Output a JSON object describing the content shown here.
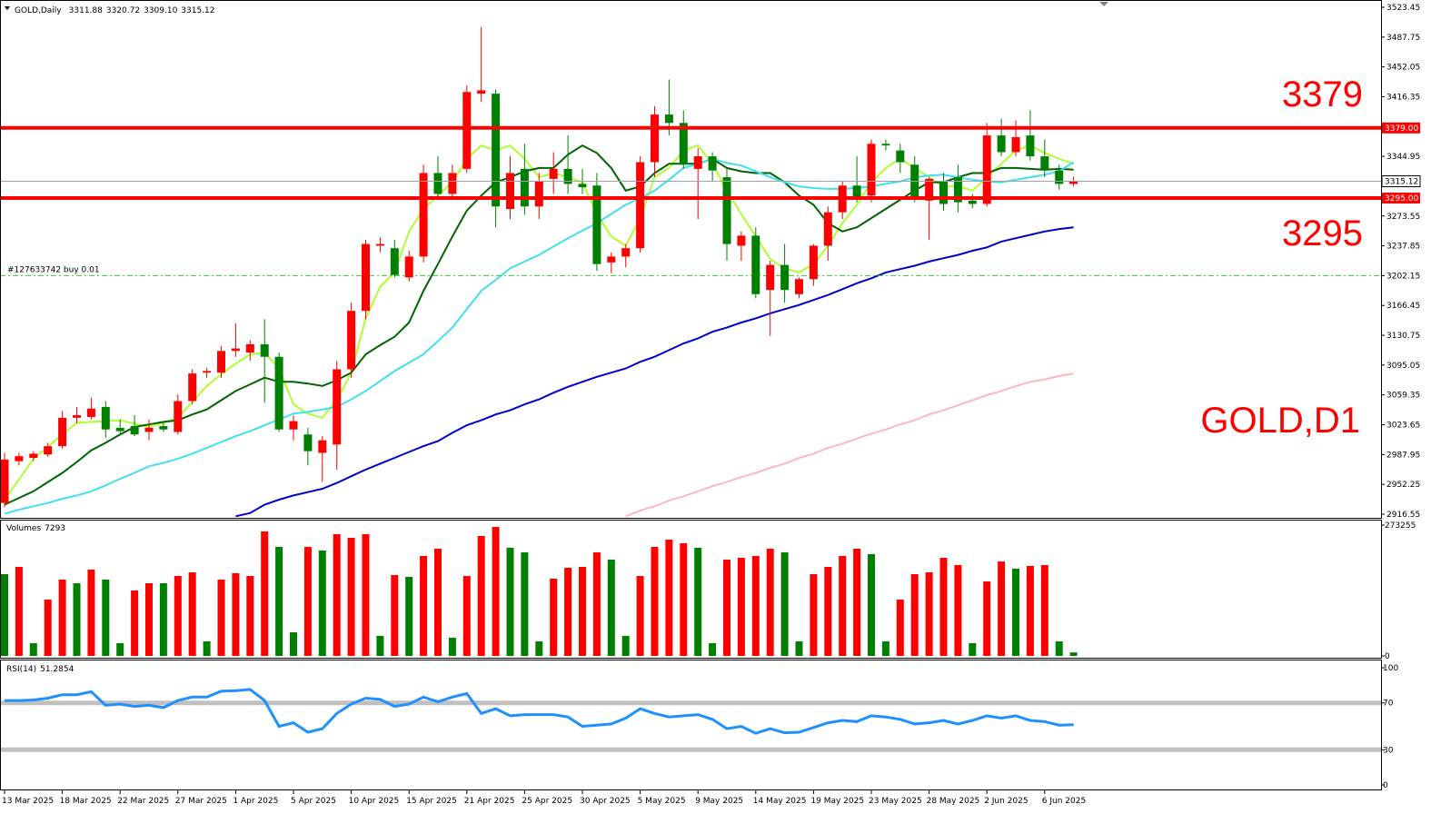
{
  "chart_data": [
    {
      "type": "candlestick",
      "title": "GOLD,Daily",
      "ohlc_labels": [
        "3311.88",
        "3320.72",
        "3309.10",
        "3315.12"
      ],
      "categories": [
        "13 Mar 2025",
        null,
        null,
        null,
        "18 Mar 2025",
        null,
        null,
        null,
        "22 Mar 2025",
        null,
        null,
        null,
        "27 Mar 2025",
        null,
        null,
        null,
        "1 Apr 2025",
        null,
        null,
        null,
        "5 Apr 2025",
        null,
        null,
        null,
        "10 Apr 2025",
        null,
        null,
        null,
        "15 Apr 2025",
        null,
        null,
        null,
        "21 Apr 2025",
        null,
        null,
        null,
        "25 Apr 2025",
        null,
        null,
        null,
        "30 Apr 2025",
        null,
        null,
        null,
        "5 May 2025",
        null,
        null,
        null,
        "9 May 2025",
        null,
        null,
        null,
        "14 May 2025",
        null,
        null,
        null,
        "19 May 2025",
        null,
        null,
        null,
        "23 May 2025",
        null,
        null,
        null,
        "28 May 2025",
        null,
        null,
        null,
        "2 Jun 2025",
        null,
        null,
        null,
        "6 Jun 2025",
        null,
        null
      ],
      "candles": [
        [
          2930,
          2990,
          2925,
          2982
        ],
        [
          2980,
          2990,
          2975,
          2986
        ],
        [
          2984,
          2992,
          2980,
          2989
        ],
        [
          2988,
          3002,
          2985,
          2998
        ],
        [
          2998,
          3040,
          2995,
          3032
        ],
        [
          3032,
          3045,
          3025,
          3035
        ],
        [
          3033,
          3056,
          3030,
          3043
        ],
        [
          3045,
          3052,
          3008,
          3018
        ],
        [
          3020,
          3030,
          3012,
          3016
        ],
        [
          3022,
          3035,
          3010,
          3012
        ],
        [
          3015,
          3030,
          3005,
          3020
        ],
        [
          3022,
          3028,
          3015,
          3018
        ],
        [
          3015,
          3060,
          3012,
          3052
        ],
        [
          3052,
          3090,
          3048,
          3085
        ],
        [
          3086,
          3092,
          3080,
          3088
        ],
        [
          3086,
          3118,
          3080,
          3112
        ],
        [
          3112,
          3145,
          3105,
          3115
        ],
        [
          3110,
          3125,
          3100,
          3120
        ],
        [
          3120,
          3150,
          3050,
          3105
        ],
        [
          3105,
          3110,
          3015,
          3018
        ],
        [
          3018,
          3035,
          3005,
          3028
        ],
        [
          3012,
          3020,
          2975,
          2992
        ],
        [
          2990,
          3010,
          2955,
          3005
        ],
        [
          3000,
          3100,
          2970,
          3090
        ],
        [
          3090,
          3170,
          3080,
          3160
        ],
        [
          3160,
          3245,
          3150,
          3240
        ],
        [
          3238,
          3248,
          3230,
          3240
        ],
        [
          3235,
          3245,
          3200,
          3203
        ],
        [
          3200,
          3232,
          3195,
          3225
        ],
        [
          3225,
          3335,
          3218,
          3325
        ],
        [
          3325,
          3345,
          3295,
          3300
        ],
        [
          3300,
          3335,
          3295,
          3325
        ],
        [
          3330,
          3430,
          3325,
          3422
        ],
        [
          3420,
          3500,
          3410,
          3424
        ],
        [
          3420,
          3425,
          3260,
          3285
        ],
        [
          3282,
          3345,
          3270,
          3325
        ],
        [
          3330,
          3360,
          3275,
          3285
        ],
        [
          3285,
          3325,
          3270,
          3315
        ],
        [
          3318,
          3350,
          3300,
          3330
        ],
        [
          3330,
          3370,
          3300,
          3312
        ],
        [
          3312,
          3330,
          3300,
          3308
        ],
        [
          3310,
          3325,
          3208,
          3216
        ],
        [
          3218,
          3230,
          3205,
          3225
        ],
        [
          3225,
          3240,
          3212,
          3235
        ],
        [
          3235,
          3345,
          3230,
          3338
        ],
        [
          3338,
          3405,
          3320,
          3395
        ],
        [
          3395,
          3437,
          3370,
          3385
        ],
        [
          3385,
          3400,
          3330,
          3335
        ],
        [
          3330,
          3355,
          3270,
          3345
        ],
        [
          3345,
          3350,
          3315,
          3328
        ],
        [
          3320,
          3330,
          3220,
          3240
        ],
        [
          3238,
          3255,
          3220,
          3250
        ],
        [
          3250,
          3260,
          3175,
          3180
        ],
        [
          3185,
          3220,
          3130,
          3215
        ],
        [
          3215,
          3240,
          3170,
          3185
        ],
        [
          3180,
          3200,
          3175,
          3198
        ],
        [
          3198,
          3240,
          3190,
          3238
        ],
        [
          3238,
          3285,
          3220,
          3278
        ],
        [
          3278,
          3315,
          3270,
          3310
        ],
        [
          3310,
          3345,
          3290,
          3295
        ],
        [
          3298,
          3365,
          3290,
          3360
        ],
        [
          3360,
          3365,
          3352,
          3358
        ],
        [
          3352,
          3360,
          3325,
          3338
        ],
        [
          3335,
          3345,
          3290,
          3295
        ],
        [
          3292,
          3320,
          3245,
          3318
        ],
        [
          3315,
          3325,
          3280,
          3288
        ],
        [
          3320,
          3335,
          3278,
          3290
        ],
        [
          3292,
          3300,
          3283,
          3288
        ],
        [
          3288,
          3385,
          3285,
          3370
        ],
        [
          3370,
          3390,
          3345,
          3350
        ],
        [
          3350,
          3388,
          3345,
          3368
        ],
        [
          3370,
          3400,
          3340,
          3345
        ],
        [
          3345,
          3365,
          3320,
          3328
        ],
        [
          3328,
          3335,
          3305,
          3312
        ],
        [
          3311.88,
          3320.72,
          3309.1,
          3315.12
        ]
      ],
      "up_color": "#ff0000",
      "down_color": "#008000",
      "overlays": [
        {
          "color": "#adff2f",
          "values": [
            2934,
            2958,
            2983,
            2997,
            3012,
            3026,
            3027,
            3028,
            3029,
            3025,
            3021,
            3026,
            3032,
            3051,
            3070,
            3084,
            3097,
            3108,
            3110,
            3091,
            3048,
            3037,
            3032,
            3053,
            3086,
            3151,
            3189,
            3206,
            3255,
            3282,
            3298,
            3314,
            3342,
            3358,
            3352,
            3358,
            3342,
            3320,
            3325,
            3320,
            3314,
            3276,
            3249,
            3238,
            3271,
            3320,
            3331,
            3352,
            3358,
            3336,
            3304,
            3276,
            3249,
            3222,
            3211,
            3206,
            3216,
            3238,
            3265,
            3287,
            3314,
            3331,
            3342,
            3331,
            3320,
            3309,
            3309,
            3304,
            3320,
            3336,
            3352,
            3358,
            3349,
            3342,
            3336
          ]
        },
        {
          "color": "#006400",
          "values": [
            2928,
            2936,
            2944,
            2955,
            2966,
            2979,
            2993,
            3002,
            3012,
            3021,
            3024,
            3027,
            3029,
            3036,
            3042,
            3053,
            3064,
            3072,
            3080,
            3075,
            3075,
            3073,
            3070,
            3077,
            3086,
            3108,
            3119,
            3129,
            3146,
            3184,
            3216,
            3249,
            3280,
            3298,
            3314,
            3320,
            3327,
            3331,
            3331,
            3347,
            3358,
            3349,
            3331,
            3304,
            3309,
            3325,
            3336,
            3336,
            3336,
            3342,
            3331,
            3327,
            3325,
            3325,
            3314,
            3298,
            3287,
            3265,
            3255,
            3260,
            3271,
            3282,
            3293,
            3304,
            3314,
            3314,
            3320,
            3325,
            3325,
            3331,
            3331,
            3330,
            3329,
            3330,
            3329
          ]
        },
        {
          "color": "#40e0f0",
          "values": [
            2917,
            2922,
            2926,
            2930,
            2935,
            2939,
            2944,
            2951,
            2959,
            2966,
            2974,
            2978,
            2983,
            2989,
            2996,
            3003,
            3010,
            3016,
            3023,
            3030,
            3037,
            3039,
            3042,
            3045,
            3054,
            3064,
            3076,
            3088,
            3098,
            3108,
            3124,
            3140,
            3162,
            3184,
            3197,
            3211,
            3219,
            3227,
            3237,
            3247,
            3256,
            3265,
            3276,
            3287,
            3295,
            3304,
            3317,
            3331,
            3336,
            3342,
            3337,
            3334,
            3327,
            3320,
            3314,
            3309,
            3307,
            3306,
            3306,
            3307,
            3309,
            3312,
            3315,
            3320,
            3322,
            3323,
            3320,
            3317,
            3315,
            3314,
            3317,
            3320,
            3323,
            3327,
            3338
          ]
        },
        {
          "color": "#0000cd",
          "values": [
            null,
            null,
            null,
            null,
            null,
            null,
            null,
            null,
            null,
            null,
            null,
            null,
            null,
            null,
            null,
            null,
            2914,
            2918,
            2928,
            2934,
            2939,
            2943,
            2947,
            2954,
            2962,
            2970,
            2977,
            2984,
            2991,
            2998,
            3004,
            3014,
            3023,
            3029,
            3036,
            3041,
            3048,
            3054,
            3062,
            3069,
            3075,
            3081,
            3086,
            3091,
            3099,
            3105,
            3113,
            3121,
            3127,
            3135,
            3140,
            3146,
            3151,
            3157,
            3162,
            3167,
            3173,
            3179,
            3186,
            3193,
            3199,
            3206,
            3210,
            3214,
            3219,
            3223,
            3227,
            3232,
            3236,
            3243,
            3247,
            3251,
            3255,
            3258,
            3260
          ]
        },
        {
          "color": "#ffb6c1",
          "values": [
            null,
            null,
            null,
            null,
            null,
            null,
            null,
            null,
            null,
            null,
            null,
            null,
            null,
            null,
            null,
            null,
            null,
            null,
            null,
            null,
            null,
            null,
            null,
            null,
            null,
            null,
            null,
            null,
            null,
            null,
            null,
            null,
            null,
            null,
            null,
            null,
            null,
            null,
            null,
            null,
            null,
            null,
            null,
            2914,
            2921,
            2926,
            2933,
            2938,
            2944,
            2950,
            2955,
            2961,
            2966,
            2972,
            2977,
            2984,
            2989,
            2996,
            3001,
            3007,
            3013,
            3018,
            3024,
            3029,
            3036,
            3041,
            3047,
            3053,
            3059,
            3064,
            3070,
            3075,
            3078,
            3082,
            3085
          ]
        }
      ],
      "levels": [
        {
          "value": 3379,
          "label": "3379.00",
          "color": "#ff0000"
        },
        {
          "value": 3295,
          "label": "3295.00",
          "color": "#ff0000"
        }
      ],
      "order": {
        "label": "#127633742 buy 0.01",
        "value": 3202.15,
        "color": "#33cc33"
      },
      "annotations": [
        "3379",
        "3295",
        "GOLD,D1"
      ],
      "ylim": [
        2916.55,
        3523.45
      ],
      "yticks": [
        3523.45,
        3487.75,
        3452.05,
        3416.35,
        3344.95,
        3273.55,
        3237.85,
        3202.15,
        3166.45,
        3130.75,
        3095.05,
        3059.35,
        3023.65,
        2987.95,
        2952.25,
        2916.55
      ]
    },
    {
      "type": "bar",
      "title": "Volumes",
      "values": [
        170820,
        186000,
        26600,
        117700,
        159400,
        151800,
        180300,
        159400,
        26600,
        136700,
        151800,
        151800,
        167000,
        174600,
        30400,
        159400,
        172700,
        167000,
        260000,
        227800,
        49300,
        227800,
        220200,
        254300,
        246700,
        254300,
        41800,
        168900,
        165100,
        208800,
        224000,
        38000,
        167000,
        250500,
        269500,
        225900,
        216400,
        30400,
        161300,
        184100,
        186000,
        216400,
        201200,
        41800,
        167000,
        227800,
        242900,
        235400,
        225900,
        26600,
        201200,
        205000,
        208800,
        224000,
        216400,
        30400,
        170800,
        186000,
        208800,
        224000,
        212600,
        30400,
        117700,
        170800,
        174600,
        205000,
        189800,
        26600,
        155600,
        197400,
        182200,
        187900,
        189800,
        30400,
        7293
      ],
      "colors": [
        "#008000",
        "#ff0000",
        "#008000",
        "#ff0000",
        "#ff0000",
        "#008000",
        "#ff0000",
        "#008000",
        "#008000",
        "#ff0000",
        "#ff0000",
        "#008000",
        "#ff0000",
        "#ff0000",
        "#008000",
        "#ff0000",
        "#ff0000",
        "#ff0000",
        "#ff0000",
        "#008000",
        "#008000",
        "#ff0000",
        "#008000",
        "#ff0000",
        "#ff0000",
        "#ff0000",
        "#008000",
        "#ff0000",
        "#008000",
        "#ff0000",
        "#ff0000",
        "#008000",
        "#ff0000",
        "#ff0000",
        "#ff0000",
        "#008000",
        "#008000",
        "#008000",
        "#ff0000",
        "#ff0000",
        "#ff0000",
        "#ff0000",
        "#008000",
        "#008000",
        "#ff0000",
        "#ff0000",
        "#ff0000",
        "#ff0000",
        "#008000",
        "#008000",
        "#ff0000",
        "#ff0000",
        "#ff0000",
        "#ff0000",
        "#008000",
        "#008000",
        "#ff0000",
        "#ff0000",
        "#ff0000",
        "#ff0000",
        "#008000",
        "#008000",
        "#ff0000",
        "#ff0000",
        "#ff0000",
        "#ff0000",
        "#ff0000",
        "#008000",
        "#ff0000",
        "#ff0000",
        "#008000",
        "#ff0000",
        "#ff0000",
        "#008000",
        "#008000"
      ],
      "ylim": [
        0,
        273255
      ],
      "yticks": [
        0,
        273255
      ]
    },
    {
      "type": "line",
      "title": "RSI(14)",
      "color": "#1e90ff",
      "values": [
        72,
        72,
        72.5,
        74,
        77,
        77,
        79.5,
        68,
        69,
        67,
        68,
        66,
        72,
        75,
        75,
        80,
        80.5,
        81.5,
        72,
        50,
        53,
        45,
        48,
        61,
        69,
        74,
        73,
        67,
        69,
        75,
        71,
        75,
        78,
        61,
        65,
        59,
        60,
        60,
        60,
        58,
        50,
        51,
        52,
        57,
        65,
        61,
        58,
        59,
        60,
        56,
        48,
        50,
        44,
        48,
        44.5,
        45,
        49,
        53,
        55,
        54,
        59,
        58,
        56,
        52,
        53,
        55,
        52,
        55,
        59,
        57,
        59,
        55,
        54,
        51,
        51.2854
      ],
      "ylim": [
        0,
        100
      ],
      "yticks": [
        0,
        30,
        70,
        100
      ]
    }
  ]
}
